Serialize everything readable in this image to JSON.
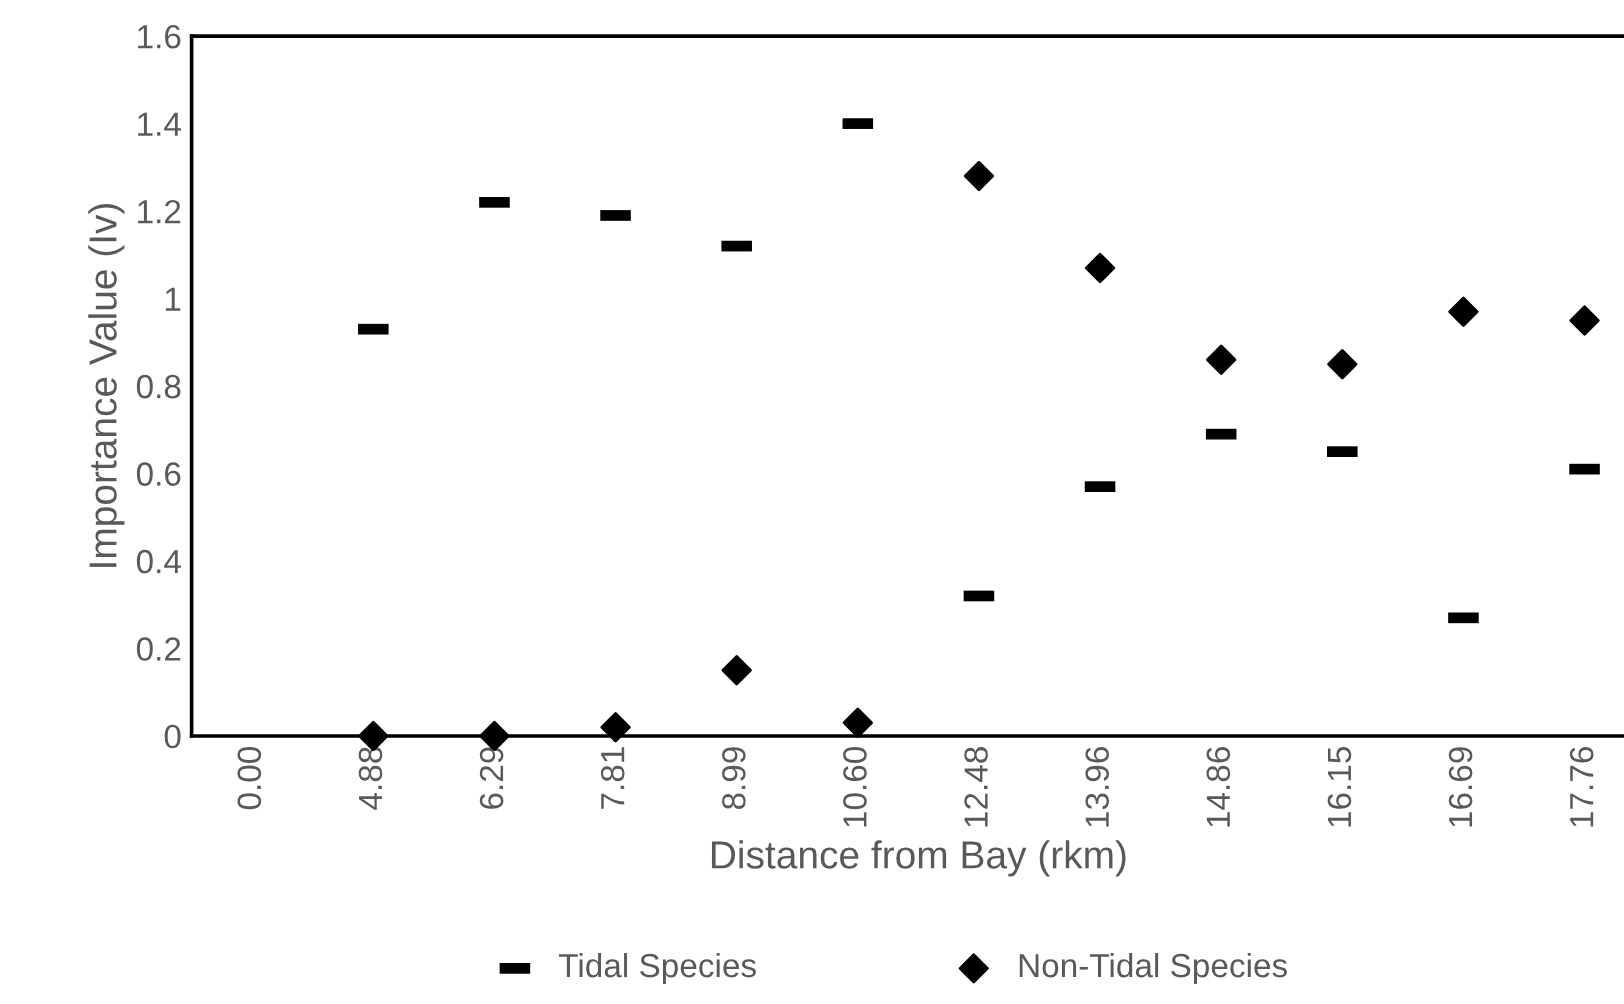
{
  "chart_data": {
    "type": "scatter",
    "xlabel": "Distance from Bay (rkm)",
    "ylabel": "Importance Value (Iv)",
    "categories": [
      "0.00",
      "4.88",
      "6.29",
      "7.81",
      "8.99",
      "10.60",
      "12.48",
      "13.96",
      "14.86",
      "16.15",
      "16.69",
      "17.76"
    ],
    "series": [
      {
        "name": "Tidal Species",
        "color": "#000000",
        "values": [
          null,
          0.93,
          1.22,
          1.19,
          1.12,
          1.4,
          0.32,
          0.57,
          0.69,
          0.65,
          0.27,
          0.61
        ]
      },
      {
        "name": "Non-Tidal Species",
        "color": "#000000",
        "marker": "diamond",
        "values": [
          null,
          0.0,
          0.0,
          0.02,
          0.15,
          0.03,
          1.28,
          1.07,
          0.86,
          0.85,
          0.97,
          0.95
        ]
      }
    ],
    "ylim": [
      0,
      1.6
    ],
    "yticks": [
      0,
      0.2,
      0.4,
      0.6,
      0.8,
      1,
      1.2,
      1.4,
      1.6
    ],
    "grid": false,
    "legend": "bottom"
  }
}
